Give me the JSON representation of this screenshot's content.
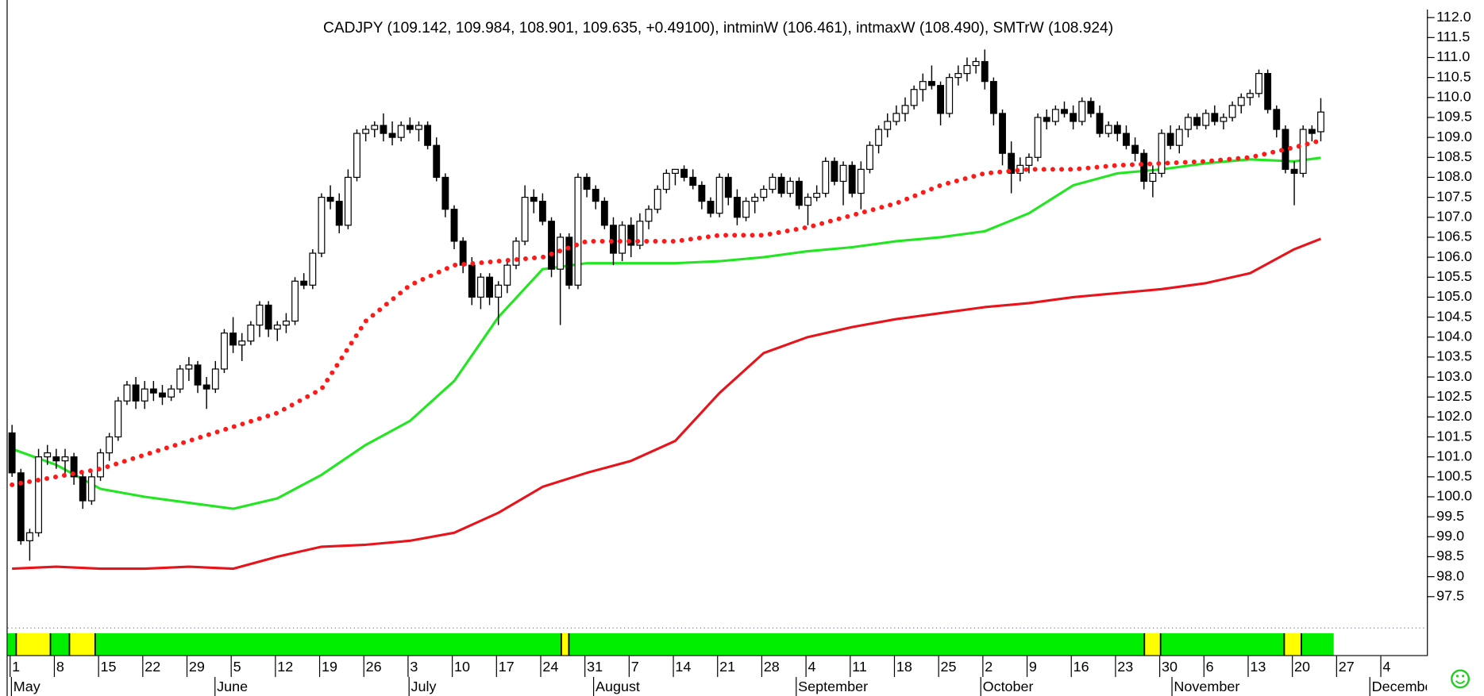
{
  "chart_data": {
    "type": "candlestick",
    "title": "CADJPY (109.142, 109.984, 108.901, 109.635, +0.49100), intminW (106.461), intmaxW (108.490), SMTrW (108.924)",
    "xlim": [
      -0.5,
      160
    ],
    "ylim": [
      96.75,
      112.25
    ],
    "yticks": [
      97.5,
      {
        "value": 98,
        "label": "98.0"
      },
      98.5,
      {
        "value": 99,
        "label": "99.0"
      },
      99.5,
      {
        "value": 100,
        "label": "100.0"
      },
      100.5,
      {
        "value": 101,
        "label": "101.0"
      },
      101.5,
      {
        "value": 102,
        "label": "102.0"
      },
      102.5,
      {
        "value": 103,
        "label": "103.0"
      },
      103.5,
      {
        "value": 104,
        "label": "104.0"
      },
      104.5,
      {
        "value": 105,
        "label": "105.0"
      },
      105.5,
      {
        "value": 106,
        "label": "106.0"
      },
      106.5,
      {
        "value": 107,
        "label": "107.0"
      },
      107.5,
      {
        "value": 108,
        "label": "108.0"
      },
      108.5,
      {
        "value": 109,
        "label": "109.0"
      },
      109.5,
      {
        "value": 110,
        "label": "110.0"
      },
      110.5,
      {
        "value": 111,
        "label": "111.0"
      },
      111.5,
      {
        "value": 112,
        "label": "112.0"
      }
    ],
    "day_labels": [
      1,
      8,
      15,
      22,
      29,
      5,
      12,
      19,
      26,
      3,
      10,
      17,
      24,
      31,
      7,
      14,
      21,
      28,
      4,
      11,
      18,
      25,
      2,
      9,
      16,
      23,
      30,
      6,
      13,
      20,
      27,
      4
    ],
    "months": [
      "May",
      "June",
      "July",
      "August",
      "September",
      "October",
      "November",
      "December"
    ],
    "up_color": "#ffffff",
    "down_color": "#000000",
    "candles": [
      [
        101.6,
        101.8,
        100.5,
        100.6
      ],
      [
        100.6,
        100.7,
        98.8,
        98.9
      ],
      [
        98.9,
        99.2,
        98.4,
        99.1
      ],
      [
        99.1,
        101.2,
        99.0,
        101.0
      ],
      [
        101.0,
        101.3,
        100.8,
        101.1
      ],
      [
        101.0,
        101.2,
        100.7,
        100.9
      ],
      [
        100.9,
        101.2,
        100.5,
        101.0
      ],
      [
        101.0,
        101.1,
        100.3,
        100.5
      ],
      [
        100.5,
        100.6,
        99.7,
        99.9
      ],
      [
        99.9,
        100.6,
        99.8,
        100.5
      ],
      [
        100.5,
        101.2,
        100.4,
        101.1
      ],
      [
        101.1,
        101.6,
        100.9,
        101.5
      ],
      [
        101.5,
        102.5,
        101.4,
        102.4
      ],
      [
        102.4,
        102.9,
        102.3,
        102.8
      ],
      [
        102.8,
        103.0,
        102.2,
        102.4
      ],
      [
        102.4,
        102.9,
        102.2,
        102.7
      ],
      [
        102.7,
        102.9,
        102.4,
        102.6
      ],
      [
        102.6,
        102.8,
        102.3,
        102.5
      ],
      [
        102.5,
        102.8,
        102.4,
        102.7
      ],
      [
        102.7,
        103.3,
        102.6,
        103.2
      ],
      [
        103.2,
        103.5,
        102.9,
        103.3
      ],
      [
        103.3,
        103.4,
        102.6,
        102.8
      ],
      [
        102.8,
        103.0,
        102.2,
        102.7
      ],
      [
        102.7,
        103.4,
        102.6,
        103.2
      ],
      [
        103.2,
        104.2,
        103.1,
        104.1
      ],
      [
        104.1,
        104.5,
        103.6,
        103.8
      ],
      [
        103.8,
        104.1,
        103.4,
        103.9
      ],
      [
        103.9,
        104.4,
        103.8,
        104.3
      ],
      [
        104.3,
        104.9,
        104.0,
        104.8
      ],
      [
        104.8,
        104.9,
        104.0,
        104.2
      ],
      [
        104.2,
        104.4,
        103.9,
        104.3
      ],
      [
        104.3,
        104.6,
        104.1,
        104.4
      ],
      [
        104.4,
        105.5,
        104.3,
        105.4
      ],
      [
        105.4,
        105.6,
        105.2,
        105.3
      ],
      [
        105.3,
        106.2,
        105.2,
        106.1
      ],
      [
        106.1,
        107.6,
        106.0,
        107.5
      ],
      [
        107.5,
        107.8,
        107.2,
        107.4
      ],
      [
        107.4,
        107.6,
        106.6,
        106.8
      ],
      [
        106.8,
        108.2,
        106.7,
        108.0
      ],
      [
        108.0,
        109.2,
        107.9,
        109.1
      ],
      [
        109.1,
        109.3,
        108.9,
        109.2
      ],
      [
        109.2,
        109.4,
        109.0,
        109.3
      ],
      [
        109.3,
        109.6,
        108.9,
        109.1
      ],
      [
        109.1,
        109.4,
        108.8,
        109.0
      ],
      [
        109.0,
        109.4,
        108.9,
        109.3
      ],
      [
        109.3,
        109.5,
        109.1,
        109.2
      ],
      [
        109.2,
        109.4,
        108.9,
        109.3
      ],
      [
        109.3,
        109.4,
        108.7,
        108.8
      ],
      [
        108.8,
        109.0,
        107.9,
        108.0
      ],
      [
        108.0,
        108.1,
        107.0,
        107.2
      ],
      [
        107.2,
        107.3,
        106.2,
        106.4
      ],
      [
        106.4,
        106.5,
        105.6,
        105.8
      ],
      [
        105.8,
        106.0,
        104.8,
        105.0
      ],
      [
        105.0,
        105.6,
        104.7,
        105.5
      ],
      [
        105.5,
        105.6,
        104.8,
        105.0
      ],
      [
        105.0,
        105.4,
        104.3,
        105.3
      ],
      [
        105.3,
        105.9,
        105.1,
        105.8
      ],
      [
        105.8,
        106.5,
        105.7,
        106.4
      ],
      [
        106.4,
        107.8,
        106.3,
        107.5
      ],
      [
        107.5,
        107.7,
        107.1,
        107.4
      ],
      [
        107.4,
        107.6,
        106.8,
        106.9
      ],
      [
        106.9,
        107.0,
        105.5,
        105.7
      ],
      [
        105.7,
        106.6,
        104.3,
        106.5
      ],
      [
        106.5,
        106.6,
        105.2,
        105.3
      ],
      [
        105.3,
        108.1,
        105.2,
        108.0
      ],
      [
        108.0,
        108.1,
        107.5,
        107.7
      ],
      [
        107.7,
        107.8,
        107.2,
        107.4
      ],
      [
        107.4,
        107.5,
        106.7,
        106.8
      ],
      [
        106.8,
        107.0,
        105.8,
        106.1
      ],
      [
        106.1,
        106.9,
        105.9,
        106.8
      ],
      [
        106.8,
        107.0,
        106.0,
        106.3
      ],
      [
        106.3,
        107.1,
        106.2,
        106.9
      ],
      [
        106.9,
        107.3,
        106.7,
        107.2
      ],
      [
        107.2,
        107.8,
        107.1,
        107.7
      ],
      [
        107.7,
        108.2,
        107.6,
        108.1
      ],
      [
        108.1,
        108.2,
        107.8,
        108.2
      ],
      [
        108.2,
        108.3,
        107.9,
        108.0
      ],
      [
        108.0,
        108.2,
        107.7,
        107.8
      ],
      [
        107.8,
        107.9,
        107.2,
        107.4
      ],
      [
        107.4,
        107.5,
        107.0,
        107.1
      ],
      [
        107.1,
        108.1,
        107.0,
        108.0
      ],
      [
        108.0,
        108.1,
        107.3,
        107.5
      ],
      [
        107.5,
        107.7,
        106.8,
        107.0
      ],
      [
        107.0,
        107.5,
        106.9,
        107.4
      ],
      [
        107.4,
        107.6,
        107.1,
        107.5
      ],
      [
        107.5,
        107.8,
        107.4,
        107.7
      ],
      [
        107.7,
        108.1,
        107.6,
        108.0
      ],
      [
        108.0,
        108.1,
        107.5,
        107.6
      ],
      [
        107.6,
        108.0,
        107.5,
        107.9
      ],
      [
        107.9,
        108.0,
        107.2,
        107.3
      ],
      [
        107.3,
        107.6,
        106.8,
        107.5
      ],
      [
        107.5,
        107.8,
        107.4,
        107.6
      ],
      [
        107.6,
        108.5,
        107.5,
        108.4
      ],
      [
        108.4,
        108.5,
        107.8,
        107.9
      ],
      [
        107.9,
        108.4,
        107.3,
        108.3
      ],
      [
        108.3,
        108.4,
        107.5,
        107.6
      ],
      [
        107.6,
        108.4,
        107.2,
        108.2
      ],
      [
        108.2,
        108.9,
        108.1,
        108.8
      ],
      [
        108.8,
        109.3,
        108.6,
        109.2
      ],
      [
        109.2,
        109.6,
        109.0,
        109.4
      ],
      [
        109.4,
        109.8,
        109.3,
        109.6
      ],
      [
        109.6,
        110.0,
        109.4,
        109.8
      ],
      [
        109.8,
        110.3,
        109.7,
        110.2
      ],
      [
        110.2,
        110.6,
        109.9,
        110.4
      ],
      [
        110.4,
        110.8,
        110.2,
        110.3
      ],
      [
        110.3,
        110.4,
        109.3,
        109.6
      ],
      [
        109.6,
        110.6,
        109.5,
        110.5
      ],
      [
        110.5,
        110.8,
        110.3,
        110.6
      ],
      [
        110.6,
        111.0,
        110.4,
        110.8
      ],
      [
        110.8,
        111.0,
        110.6,
        110.9
      ],
      [
        110.9,
        111.2,
        110.2,
        110.4
      ],
      [
        110.4,
        110.5,
        109.3,
        109.6
      ],
      [
        109.6,
        109.7,
        108.3,
        108.6
      ],
      [
        108.6,
        108.9,
        107.6,
        108.1
      ],
      [
        108.1,
        108.5,
        107.9,
        108.3
      ],
      [
        108.3,
        108.6,
        108.1,
        108.5
      ],
      [
        108.5,
        109.6,
        108.4,
        109.5
      ],
      [
        109.5,
        109.7,
        109.2,
        109.4
      ],
      [
        109.4,
        109.8,
        109.3,
        109.7
      ],
      [
        109.7,
        109.9,
        109.5,
        109.6
      ],
      [
        109.6,
        109.8,
        109.2,
        109.4
      ],
      [
        109.4,
        110.0,
        109.3,
        109.9
      ],
      [
        109.9,
        110.0,
        109.5,
        109.6
      ],
      [
        109.6,
        109.8,
        109.0,
        109.1
      ],
      [
        109.1,
        109.4,
        109.0,
        109.3
      ],
      [
        109.3,
        109.4,
        108.9,
        109.1
      ],
      [
        109.1,
        109.3,
        108.7,
        108.8
      ],
      [
        108.8,
        109.0,
        108.4,
        108.6
      ],
      [
        108.6,
        108.7,
        107.7,
        107.9
      ],
      [
        107.9,
        108.3,
        107.5,
        108.1
      ],
      [
        108.1,
        109.2,
        108.0,
        109.1
      ],
      [
        109.1,
        109.3,
        108.7,
        108.8
      ],
      [
        108.8,
        109.3,
        108.6,
        109.2
      ],
      [
        109.2,
        109.6,
        109.0,
        109.5
      ],
      [
        109.5,
        109.6,
        109.2,
        109.3
      ],
      [
        109.3,
        109.7,
        109.2,
        109.6
      ],
      [
        109.6,
        109.8,
        109.3,
        109.4
      ],
      [
        109.4,
        109.6,
        109.2,
        109.5
      ],
      [
        109.5,
        109.9,
        109.4,
        109.8
      ],
      [
        109.8,
        110.1,
        109.6,
        110.0
      ],
      [
        110.0,
        110.2,
        109.8,
        110.1
      ],
      [
        110.1,
        110.7,
        110.0,
        110.6
      ],
      [
        110.6,
        110.7,
        109.6,
        109.7
      ],
      [
        109.7,
        109.8,
        109.0,
        109.2
      ],
      [
        109.2,
        109.3,
        108.1,
        108.2
      ],
      [
        108.2,
        108.4,
        107.3,
        108.1
      ],
      [
        108.1,
        109.3,
        108.0,
        109.2
      ],
      [
        109.2,
        109.3,
        108.9,
        109.1
      ],
      [
        109.142,
        109.984,
        108.901,
        109.635
      ]
    ],
    "series": [
      {
        "name": "intminW",
        "color": "#e8141c",
        "dotted": false,
        "x": [
          0,
          5,
          10,
          15,
          20,
          25,
          30,
          35,
          40,
          45,
          50,
          55,
          60,
          65,
          70,
          75,
          80,
          85,
          90,
          95,
          100,
          105,
          110,
          115,
          120,
          125,
          130,
          135,
          140,
          145,
          148
        ],
        "values": [
          98.2,
          98.25,
          98.2,
          98.2,
          98.25,
          98.2,
          98.5,
          98.75,
          98.8,
          98.9,
          99.1,
          99.6,
          100.25,
          100.6,
          100.9,
          101.4,
          102.6,
          103.6,
          104.0,
          104.25,
          104.45,
          104.6,
          104.75,
          104.85,
          105.0,
          105.1,
          105.2,
          105.35,
          105.6,
          106.2,
          106.461
        ]
      },
      {
        "name": "intmaxW",
        "color": "#22e622",
        "dotted": false,
        "x": [
          0,
          5,
          10,
          15,
          20,
          25,
          30,
          35,
          40,
          45,
          50,
          55,
          60,
          65,
          70,
          75,
          80,
          85,
          90,
          95,
          100,
          105,
          110,
          115,
          120,
          125,
          130,
          135,
          140,
          145,
          148
        ],
        "values": [
          101.2,
          100.8,
          100.2,
          100.0,
          99.85,
          99.7,
          99.96,
          100.55,
          101.3,
          101.9,
          102.9,
          104.5,
          105.7,
          105.85,
          105.85,
          105.85,
          105.9,
          106.0,
          106.15,
          106.25,
          106.4,
          106.5,
          106.65,
          107.1,
          107.8,
          108.1,
          108.2,
          108.35,
          108.45,
          108.4,
          108.49
        ]
      },
      {
        "name": "SMTrW",
        "color": "#ff1a1a",
        "dotted": true,
        "x": [
          0,
          5,
          10,
          15,
          20,
          25,
          30,
          35,
          40,
          45,
          50,
          55,
          60,
          65,
          70,
          75,
          80,
          85,
          90,
          95,
          100,
          105,
          110,
          115,
          120,
          125,
          130,
          135,
          140,
          145,
          148
        ],
        "values": [
          100.3,
          100.5,
          100.7,
          101.05,
          101.4,
          101.75,
          102.1,
          102.7,
          104.4,
          105.3,
          105.8,
          105.9,
          106.0,
          106.4,
          106.4,
          106.4,
          106.55,
          106.55,
          106.75,
          107.05,
          107.35,
          107.8,
          108.1,
          108.2,
          108.2,
          108.3,
          108.35,
          108.4,
          108.5,
          108.75,
          108.924
        ]
      }
    ]
  }
}
